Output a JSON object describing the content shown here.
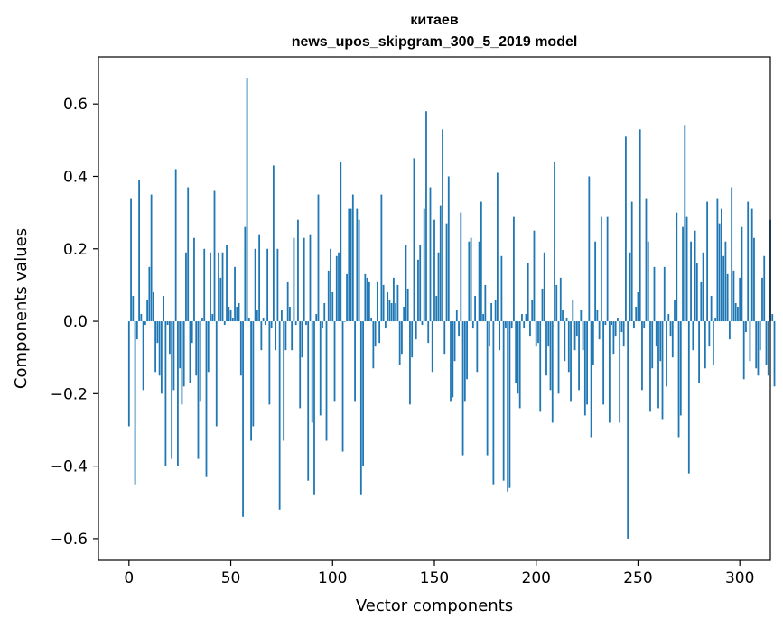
{
  "chart_data": {
    "type": "bar",
    "title": "китаев",
    "subtitle": "news_upos_skipgram_300_5_2019 model",
    "xlabel": "Vector components",
    "ylabel": "Components values",
    "xlim": [
      -15,
      315
    ],
    "ylim": [
      -0.66,
      0.73
    ],
    "xticks": [
      0,
      50,
      100,
      150,
      200,
      250,
      300
    ],
    "xtick_labels": [
      "0",
      "50",
      "100",
      "150",
      "200",
      "250",
      "300"
    ],
    "yticks": [
      -0.6,
      -0.4,
      -0.2,
      0.0,
      0.2,
      0.4,
      0.6
    ],
    "ytick_labels": [
      "−0.6",
      "−0.4",
      "−0.2",
      "0.0",
      "0.2",
      "0.4",
      "0.6"
    ],
    "grid": false,
    "bar_color": "#1f77b4",
    "values": [
      -0.29,
      0.34,
      0.07,
      -0.45,
      -0.05,
      0.39,
      0.02,
      -0.19,
      -0.01,
      0.06,
      0.15,
      0.35,
      0.08,
      -0.14,
      -0.06,
      -0.15,
      -0.2,
      0.07,
      -0.4,
      -0.01,
      -0.09,
      -0.38,
      -0.19,
      0.42,
      -0.4,
      -0.13,
      -0.23,
      -0.18,
      0.19,
      0.37,
      -0.17,
      -0.06,
      0.23,
      -0.15,
      -0.38,
      -0.22,
      0.01,
      0.2,
      -0.43,
      -0.14,
      0.19,
      0.02,
      0.36,
      -0.29,
      0.19,
      0.12,
      0.19,
      -0.01,
      0.21,
      0.04,
      0.03,
      0.01,
      0.15,
      0.04,
      0.05,
      -0.15,
      -0.54,
      0.26,
      0.67,
      0.01,
      -0.33,
      -0.29,
      0.2,
      0.03,
      0.24,
      -0.08,
      0.01,
      -0.01,
      0.2,
      -0.23,
      -0.02,
      0.43,
      -0.08,
      0.2,
      -0.52,
      0.03,
      -0.33,
      -0.08,
      0.11,
      0.04,
      -0.08,
      0.23,
      -0.01,
      0.28,
      -0.24,
      -0.1,
      0.23,
      -0.01,
      -0.44,
      0.24,
      -0.28,
      -0.48,
      0.02,
      0.35,
      -0.26,
      -0.02,
      0.05,
      -0.33,
      0.14,
      0.2,
      0.08,
      -0.22,
      0.18,
      0.19,
      0.44,
      -0.36,
      0.0,
      0.13,
      0.31,
      0.31,
      0.35,
      -0.22,
      0.31,
      0.28,
      -0.48,
      -0.4,
      0.13,
      0.12,
      0.11,
      0.01,
      -0.13,
      -0.07,
      0.11,
      -0.06,
      0.35,
      0.1,
      -0.02,
      0.08,
      0.06,
      0.05,
      0.12,
      0.05,
      0.1,
      -0.12,
      -0.09,
      0.04,
      0.21,
      0.09,
      -0.23,
      -0.1,
      0.45,
      -0.05,
      0.17,
      0.21,
      -0.01,
      0.31,
      0.58,
      -0.06,
      0.37,
      -0.14,
      0.28,
      0.07,
      0.19,
      0.32,
      0.53,
      -0.09,
      0.27,
      0.4,
      -0.22,
      -0.21,
      -0.11,
      0.03,
      -0.04,
      0.3,
      -0.37,
      -0.22,
      -0.16,
      0.22,
      0.23,
      -0.02,
      0.07,
      -0.14,
      0.22,
      0.33,
      0.02,
      0.1,
      -0.37,
      -0.07,
      0.05,
      -0.45,
      0.06,
      0.41,
      -0.08,
      0.18,
      -0.44,
      -0.02,
      -0.47,
      -0.46,
      -0.02,
      0.29,
      -0.17,
      -0.2,
      -0.24,
      0.02,
      -0.02,
      0.02,
      0.16,
      -0.04,
      0.06,
      0.25,
      -0.07,
      -0.06,
      -0.25,
      0.09,
      0.19,
      -0.15,
      -0.07,
      -0.19,
      -0.28,
      0.44,
      0.1,
      -0.2,
      0.12,
      0.03,
      -0.11,
      0.01,
      -0.14,
      -0.22,
      0.06,
      -0.08,
      -0.04,
      -0.19,
      0.03,
      -0.08,
      -0.26,
      -0.23,
      0.4,
      -0.32,
      -0.12,
      0.22,
      0.03,
      -0.05,
      0.29,
      -0.23,
      -0.01,
      0.29,
      -0.28,
      -0.01,
      -0.09,
      -0.04,
      0.01,
      -0.28,
      -0.03,
      -0.07,
      0.51,
      -0.6,
      0.19,
      0.33,
      -0.02,
      0.04,
      0.08,
      0.53,
      -0.19,
      -0.02,
      0.34,
      0.22,
      -0.25,
      -0.13,
      0.15,
      -0.07,
      -0.24,
      -0.11,
      -0.27,
      0.15,
      -0.18,
      0.02,
      -0.04,
      -0.1,
      0.06,
      0.3,
      -0.32,
      -0.26,
      0.26,
      0.54,
      0.29,
      -0.42,
      0.22,
      -0.08,
      0.25,
      0.16,
      -0.17,
      0.11,
      0.19,
      -0.13,
      0.33,
      -0.07,
      0.07,
      -0.12,
      0.01,
      0.34,
      0.27,
      0.31,
      0.18,
      0.22,
      0.13,
      -0.05,
      0.37,
      0.14,
      0.05,
      0.04,
      0.12,
      0.26,
      -0.16,
      -0.03,
      0.33,
      -0.11,
      0.31,
      0.23,
      -0.13,
      -0.15,
      -0.08,
      0.12,
      0.18,
      -0.12,
      -0.15,
      0.28,
      0.02,
      -0.18
    ]
  }
}
